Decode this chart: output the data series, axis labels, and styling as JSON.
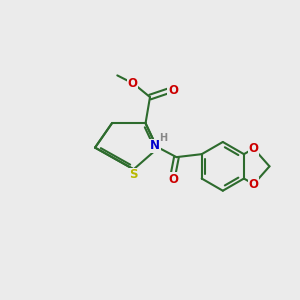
{
  "bg_color": "#ebebeb",
  "bond_color": "#2d6b2d",
  "bond_width": 1.5,
  "atom_colors": {
    "S": "#b8b800",
    "N": "#0000cc",
    "O": "#cc0000",
    "H": "#888888"
  },
  "font_size_atom": 8.5,
  "font_size_small": 7.0,
  "figsize": [
    3.0,
    3.0
  ],
  "dpi": 100
}
